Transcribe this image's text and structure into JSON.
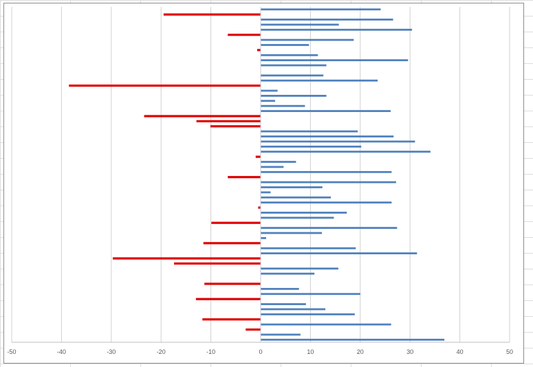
{
  "chart_data": {
    "type": "bar",
    "orientation": "horizontal",
    "title": "",
    "xlabel": "",
    "ylabel": "",
    "xlim": [
      -50,
      50
    ],
    "x_ticks": [
      "-50",
      "-40",
      "-30",
      "-20",
      "-10",
      "0",
      "10",
      "20",
      "30",
      "40",
      "50"
    ],
    "grid": true,
    "legend": "none",
    "colors": {
      "positive": "#4f81bd",
      "negative": "#e00000"
    },
    "values": [
      24.1,
      -19.5,
      26.6,
      15.7,
      30.4,
      -6.6,
      18.7,
      9.7,
      -0.7,
      11.5,
      29.6,
      13.2,
      0,
      12.6,
      23.5,
      -38.5,
      3.4,
      13.2,
      2.9,
      8.9,
      26.1,
      -23.4,
      -12.9,
      -10.1,
      19.5,
      26.7,
      31.0,
      20.2,
      34.1,
      -1.0,
      7.1,
      4.6,
      26.3,
      -6.6,
      27.2,
      12.4,
      2.0,
      14.1,
      26.3,
      -0.5,
      17.3,
      14.7,
      -9.9,
      27.4,
      12.3,
      1.1,
      -11.5,
      19.1,
      31.4,
      -29.7,
      -17.4,
      15.6,
      10.8,
      0,
      -11.3,
      7.7,
      20.0,
      -13.0,
      9.1,
      13.0,
      18.9,
      -11.7,
      26.2,
      -3.0,
      8.0,
      36.9
    ]
  }
}
